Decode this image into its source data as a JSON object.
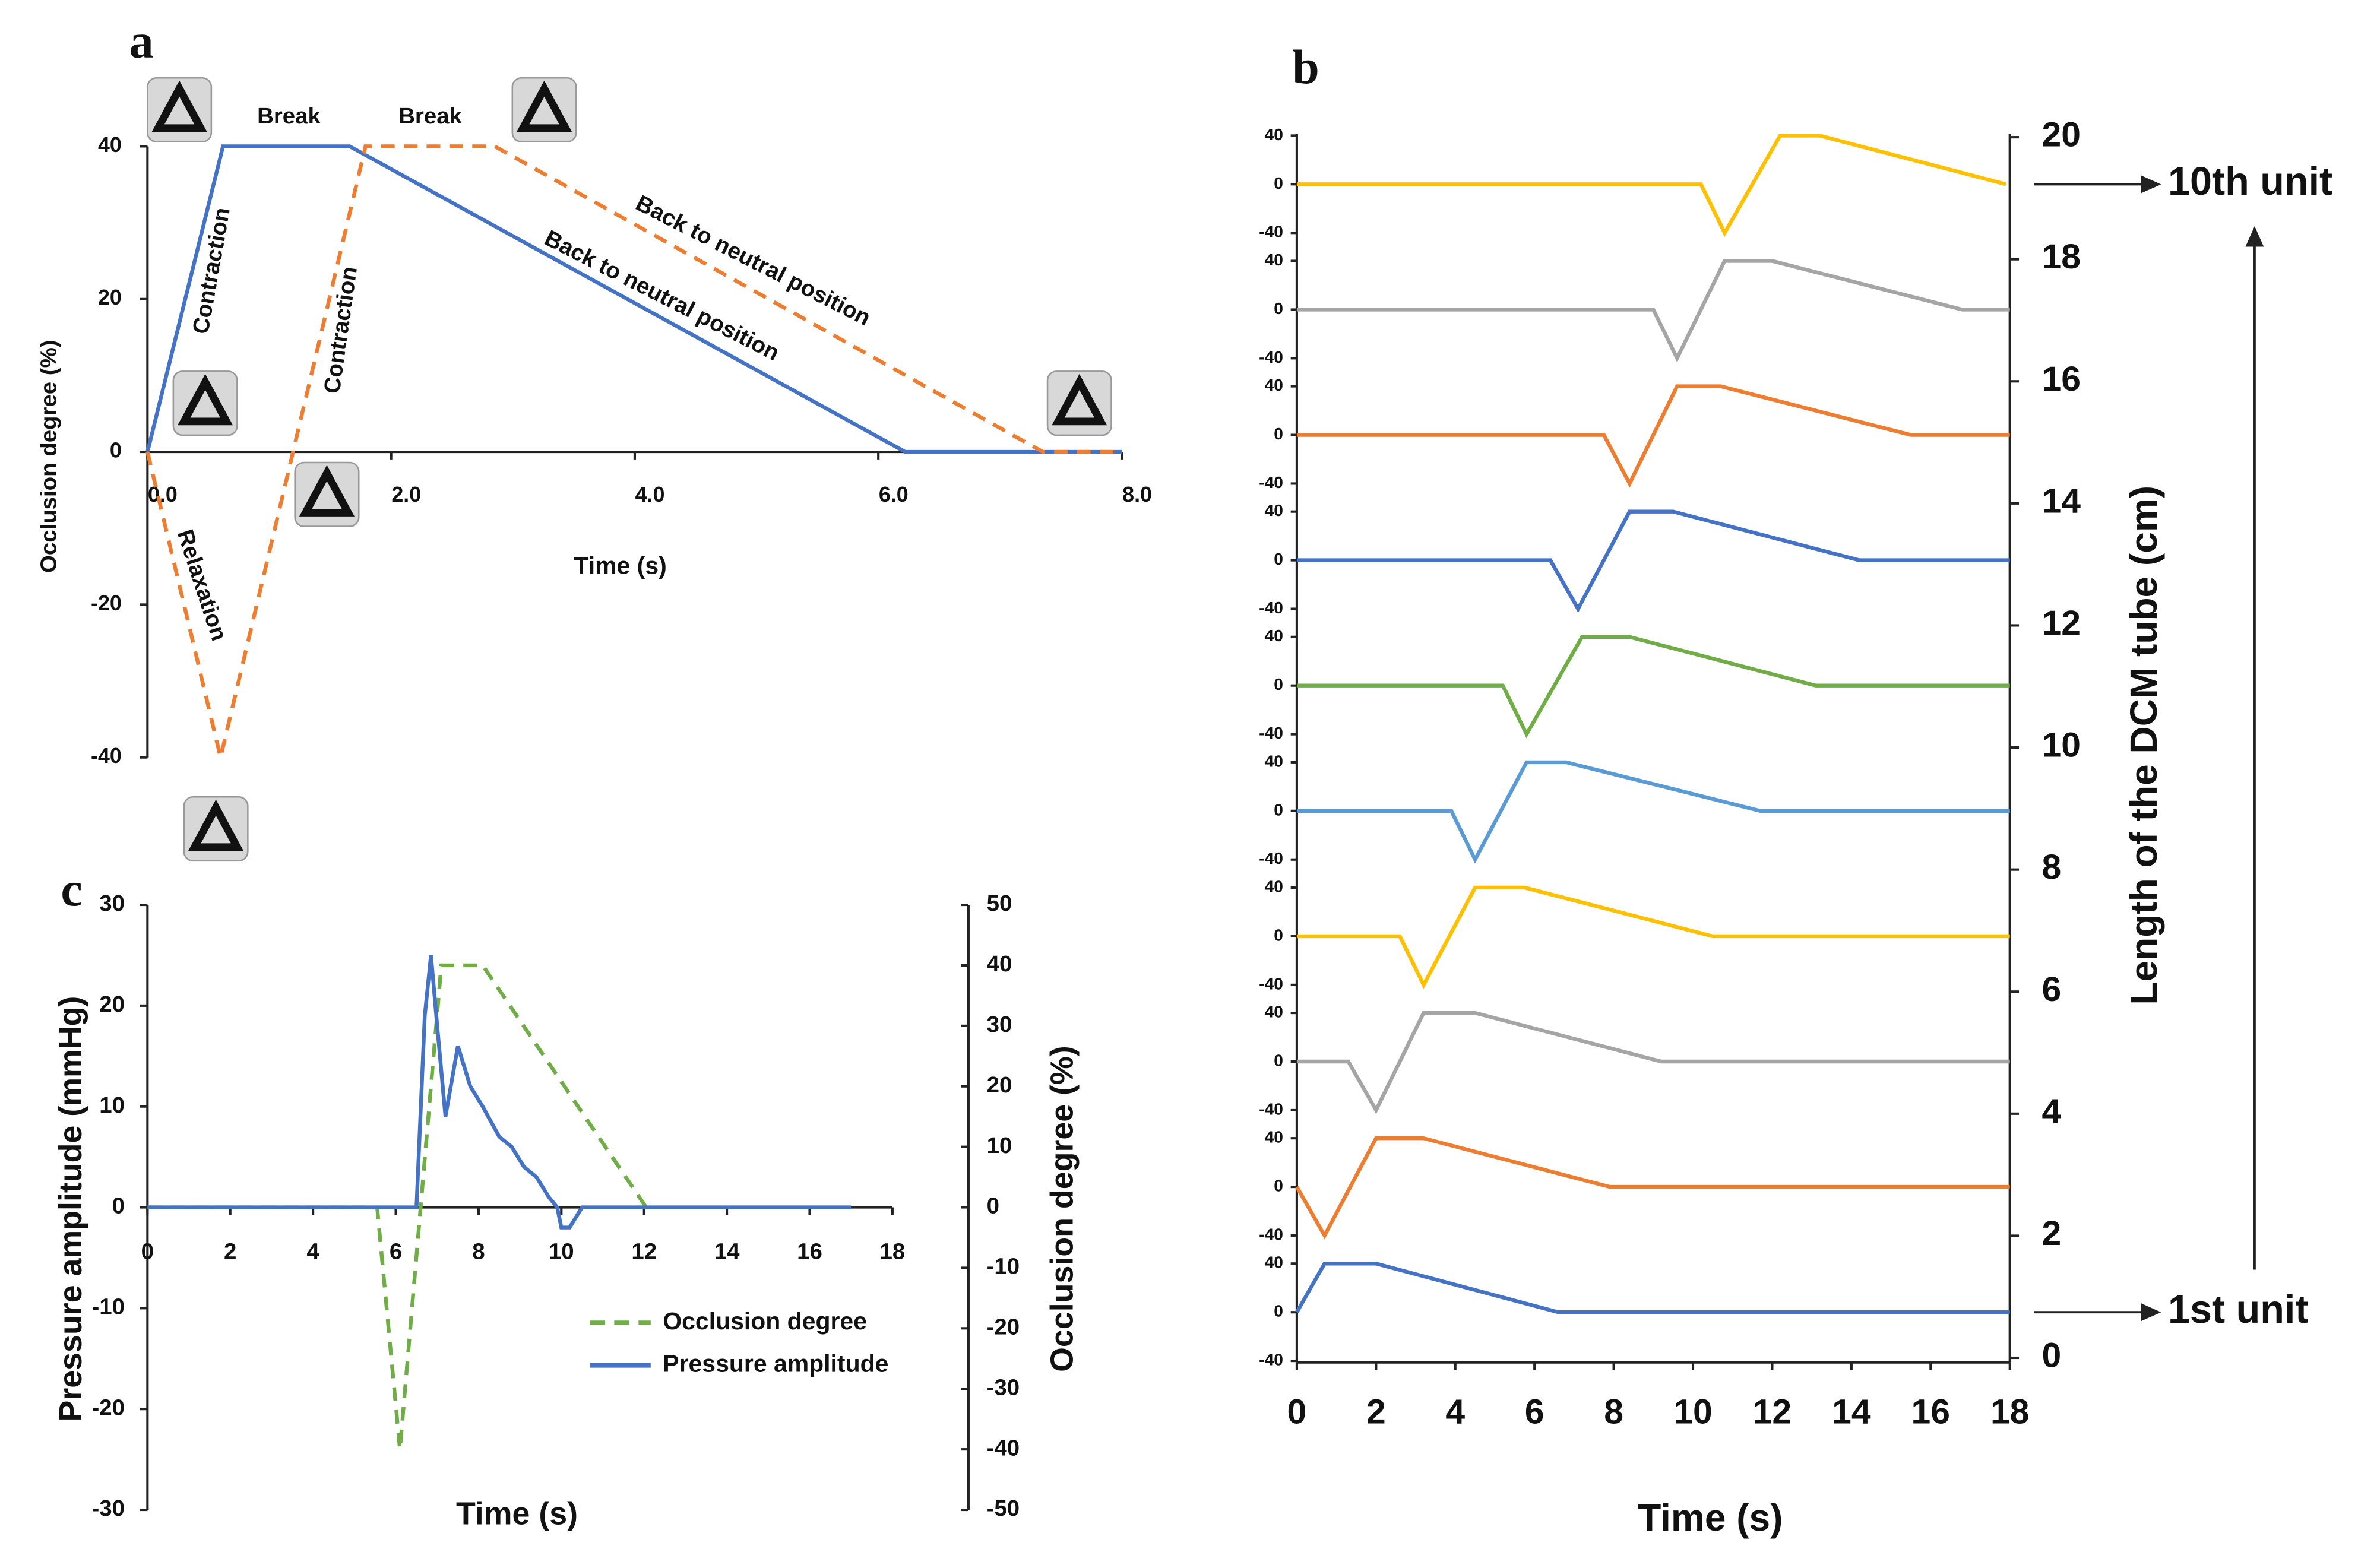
{
  "chart_data": [
    {
      "label": "a",
      "type": "line",
      "x_label": "Time (s)",
      "y_label": "Occlusion degree (%)",
      "xlim": [
        0,
        8
      ],
      "ylim": [
        -40,
        40
      ],
      "xticks": [
        {
          "value": 0,
          "label": "0.0"
        },
        {
          "value": 2,
          "label": "2.0"
        },
        {
          "value": 4,
          "label": "4.0"
        },
        {
          "value": 6,
          "label": "6.0"
        },
        {
          "value": 8,
          "label": "8.0"
        }
      ],
      "yticks": [
        -40,
        -20,
        0,
        20,
        40
      ],
      "series": [
        {
          "color": "#4472c4",
          "x": [
            0,
            0.62,
            1.66,
            6.22,
            8.0
          ],
          "values": [
            0,
            40,
            40,
            0,
            0
          ]
        },
        {
          "color": "#ed7d31",
          "dashed": true,
          "x": [
            0,
            0.6,
            1.79,
            2.85,
            7.35,
            8.0
          ],
          "values": [
            0,
            -40,
            40,
            40,
            0,
            0
          ]
        }
      ],
      "annotations": [
        "Break",
        "Break",
        "Contraction",
        "Contraction",
        "Relaxation",
        "Back to neutral position",
        "Back to neutral position"
      ]
    },
    {
      "label": "b",
      "type": "multiples",
      "x_label": "Time (s)",
      "y2_label": "Length of the DCM tube (cm)",
      "xlim": [
        0,
        18
      ],
      "xticks": [
        0,
        2,
        4,
        6,
        8,
        10,
        12,
        14,
        16,
        18
      ],
      "y2lim": [
        0,
        20
      ],
      "y2ticks": [
        0,
        2,
        4,
        6,
        8,
        10,
        12,
        14,
        16,
        18,
        20
      ],
      "units": [
        {
          "color": "#4472c4",
          "ylim": [
            -40,
            40
          ],
          "yticks": [
            -40,
            0,
            40
          ],
          "x": [
            0,
            0.7,
            2.0,
            6.6,
            18
          ],
          "values": [
            0,
            40,
            40,
            0,
            0
          ]
        },
        {
          "color": "#ed7d31",
          "ylim": [
            -40,
            40
          ],
          "yticks": [
            -40,
            0,
            40
          ],
          "x": [
            0,
            0.7,
            2.0,
            3.2,
            7.9,
            18
          ],
          "values": [
            0,
            -40,
            40,
            40,
            0,
            0
          ]
        },
        {
          "color": "#a5a5a5",
          "ylim": [
            -40,
            40
          ],
          "yticks": [
            -40,
            0,
            40
          ],
          "x": [
            0,
            1.3,
            2.0,
            3.2,
            4.5,
            9.2,
            18
          ],
          "values": [
            0,
            0,
            -40,
            40,
            40,
            0,
            0
          ]
        },
        {
          "color": "#ffc000",
          "ylim": [
            -40,
            40
          ],
          "yticks": [
            -40,
            0,
            40
          ],
          "x": [
            0,
            2.6,
            3.2,
            4.5,
            5.75,
            10.5,
            18
          ],
          "values": [
            0,
            0,
            -40,
            40,
            40,
            0,
            0
          ]
        },
        {
          "color": "#5b9bd5",
          "ylim": [
            -40,
            40
          ],
          "yticks": [
            -40,
            0,
            40
          ],
          "x": [
            0,
            3.9,
            4.5,
            5.8,
            6.8,
            11.7,
            18
          ],
          "values": [
            0,
            0,
            -40,
            40,
            40,
            0,
            0
          ]
        },
        {
          "color": "#70ad47",
          "ylim": [
            -40,
            40
          ],
          "yticks": [
            -40,
            0,
            40
          ],
          "x": [
            0,
            5.2,
            5.8,
            7.2,
            8.4,
            13.1,
            18
          ],
          "values": [
            0,
            0,
            -40,
            40,
            40,
            0,
            0
          ]
        },
        {
          "color": "#4472c4",
          "ylim": [
            -40,
            40
          ],
          "yticks": [
            -40,
            0,
            40
          ],
          "x": [
            0,
            6.4,
            7.1,
            8.4,
            9.5,
            14.2,
            18
          ],
          "values": [
            0,
            0,
            -40,
            40,
            40,
            0,
            0
          ]
        },
        {
          "color": "#ed7d31",
          "ylim": [
            -40,
            40
          ],
          "yticks": [
            -40,
            0,
            40
          ],
          "x": [
            0,
            7.75,
            8.4,
            9.6,
            10.7,
            15.5,
            18
          ],
          "values": [
            0,
            0,
            -40,
            40,
            40,
            0,
            0
          ]
        },
        {
          "color": "#a5a5a5",
          "ylim": [
            -40,
            40
          ],
          "yticks": [
            -40,
            0,
            40
          ],
          "x": [
            0,
            9.0,
            9.6,
            10.8,
            12.0,
            16.8,
            18
          ],
          "values": [
            0,
            0,
            -40,
            40,
            40,
            0,
            0
          ]
        },
        {
          "color": "#ffc000",
          "ylim": [
            -40,
            40
          ],
          "yticks": [
            -40,
            0,
            40
          ],
          "x": [
            0,
            10.2,
            10.8,
            12.2,
            13.2,
            17.9
          ],
          "values": [
            0,
            0,
            -40,
            40,
            40,
            0
          ]
        }
      ],
      "annotations": [
        "10th unit",
        "1st unit"
      ]
    },
    {
      "label": "c",
      "type": "line",
      "x_label": "Time (s)",
      "y_label": "Pressure amplitude (mmHg)",
      "y2_label": "Occlusion degree (%)",
      "xlim": [
        0,
        18
      ],
      "xticks": [
        0,
        2,
        4,
        6,
        8,
        10,
        12,
        14,
        16,
        18
      ],
      "ylim": [
        -30,
        30
      ],
      "yticks": [
        -30,
        -20,
        -10,
        0,
        10,
        20,
        30
      ],
      "y2lim": [
        -50,
        50
      ],
      "y2ticks": [
        -50,
        -40,
        -30,
        -20,
        -10,
        0,
        10,
        20,
        30,
        40,
        50
      ],
      "legend": "lower right",
      "series": [
        {
          "name": "Occlusion degree",
          "color": "#70ad47",
          "dashed": true,
          "axis": "y2",
          "x": [
            0,
            5.55,
            6.1,
            7.1,
            8.1,
            12.05
          ],
          "values": [
            0,
            0,
            -40,
            40,
            40,
            0
          ]
        },
        {
          "name": "Pressure amplitude",
          "color": "#4472c4",
          "x": [
            0,
            1,
            2,
            3,
            4,
            5,
            6,
            6.5,
            6.7,
            6.85,
            7.0,
            7.2,
            7.5,
            7.8,
            8.1,
            8.5,
            8.8,
            9.1,
            9.4,
            9.7,
            9.9,
            10.0,
            10.2,
            10.5,
            11,
            12,
            13,
            14,
            15,
            16,
            17
          ],
          "values": [
            0,
            0,
            0,
            0,
            0,
            0,
            0,
            0,
            19,
            25,
            18,
            9,
            16,
            12,
            10,
            7,
            6,
            4,
            3,
            1,
            0,
            -2,
            -2,
            0,
            0,
            0,
            0,
            0,
            0,
            0,
            0
          ]
        }
      ]
    }
  ]
}
